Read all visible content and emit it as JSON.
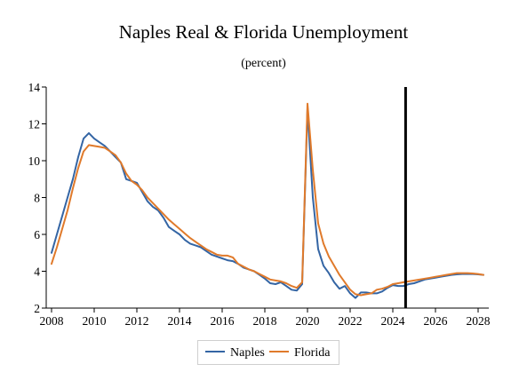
{
  "chart_data": {
    "type": "line",
    "title": "Naples Real & Florida Unemployment",
    "subtitle": "(percent)",
    "xlabel": "",
    "ylabel": "",
    "xlim": [
      2007.75,
      2028.5
    ],
    "ylim": [
      2,
      14
    ],
    "x_ticks": [
      2008,
      2010,
      2012,
      2014,
      2016,
      2018,
      2020,
      2022,
      2024,
      2026,
      2028
    ],
    "y_ticks": [
      2,
      4,
      6,
      8,
      10,
      12,
      14
    ],
    "grid": false,
    "legend_position": "bottom",
    "vertical_marker_x": 2024.6,
    "series": [
      {
        "name": "Naples",
        "color": "#3465a4",
        "x": [
          2008,
          2008.25,
          2008.5,
          2008.75,
          2009,
          2009.25,
          2009.5,
          2009.75,
          2010,
          2010.25,
          2010.5,
          2010.75,
          2011,
          2011.25,
          2011.5,
          2011.75,
          2012,
          2012.25,
          2012.5,
          2012.75,
          2013,
          2013.25,
          2013.5,
          2013.75,
          2014,
          2014.25,
          2014.5,
          2014.75,
          2015,
          2015.25,
          2015.5,
          2015.75,
          2016,
          2016.25,
          2016.5,
          2016.75,
          2017,
          2017.25,
          2017.5,
          2017.75,
          2018,
          2018.25,
          2018.5,
          2018.75,
          2019,
          2019.25,
          2019.5,
          2019.75,
          2020,
          2020.25,
          2020.5,
          2020.75,
          2021,
          2021.25,
          2021.5,
          2021.75,
          2022,
          2022.25,
          2022.5,
          2022.75,
          2023,
          2023.25,
          2023.5,
          2023.75,
          2024,
          2024.25,
          2024.5,
          2024.75,
          2025,
          2025.25,
          2025.5,
          2025.75,
          2026,
          2026.25,
          2026.5,
          2026.75,
          2027,
          2027.25,
          2027.5,
          2027.75,
          2028,
          2028.25
        ],
        "values": [
          5.0,
          6.0,
          7.0,
          8.0,
          9.0,
          10.2,
          11.2,
          11.5,
          11.2,
          11.0,
          10.8,
          10.5,
          10.2,
          9.9,
          9.0,
          8.9,
          8.8,
          8.3,
          7.8,
          7.5,
          7.3,
          6.9,
          6.4,
          6.2,
          6.0,
          5.7,
          5.5,
          5.4,
          5.3,
          5.1,
          4.9,
          4.8,
          4.7,
          4.6,
          4.55,
          4.4,
          4.2,
          4.1,
          4.0,
          3.8,
          3.6,
          3.35,
          3.3,
          3.4,
          3.2,
          3.0,
          2.95,
          3.3,
          12.8,
          8.0,
          5.2,
          4.3,
          3.9,
          3.4,
          3.05,
          3.2,
          2.8,
          2.55,
          2.85,
          2.85,
          2.8,
          2.8,
          2.9,
          3.1,
          3.25,
          3.2,
          3.2,
          3.3,
          3.35,
          3.45,
          3.55,
          3.6,
          3.65,
          3.7,
          3.75,
          3.8,
          3.83,
          3.85,
          3.85,
          3.85,
          3.83,
          3.8
        ]
      },
      {
        "name": "Florida",
        "color": "#e07a2b",
        "x": [
          2008,
          2008.25,
          2008.5,
          2008.75,
          2009,
          2009.25,
          2009.5,
          2009.75,
          2010,
          2010.25,
          2010.5,
          2010.75,
          2011,
          2011.25,
          2011.5,
          2011.75,
          2012,
          2012.25,
          2012.5,
          2012.75,
          2013,
          2013.25,
          2013.5,
          2013.75,
          2014,
          2014.25,
          2014.5,
          2014.75,
          2015,
          2015.25,
          2015.5,
          2015.75,
          2016,
          2016.25,
          2016.5,
          2016.75,
          2017,
          2017.25,
          2017.5,
          2017.75,
          2018,
          2018.25,
          2018.5,
          2018.75,
          2019,
          2019.25,
          2019.5,
          2019.75,
          2020,
          2020.25,
          2020.5,
          2020.75,
          2021,
          2021.25,
          2021.5,
          2021.75,
          2022,
          2022.25,
          2022.5,
          2022.75,
          2023,
          2023.25,
          2023.5,
          2023.75,
          2024,
          2024.25,
          2024.5,
          2024.75,
          2025,
          2025.25,
          2025.5,
          2025.75,
          2026,
          2026.25,
          2026.5,
          2026.75,
          2027,
          2027.25,
          2027.5,
          2027.75,
          2028,
          2028.25
        ],
        "values": [
          4.4,
          5.3,
          6.3,
          7.3,
          8.5,
          9.6,
          10.5,
          10.85,
          10.8,
          10.75,
          10.7,
          10.5,
          10.3,
          9.9,
          9.3,
          8.9,
          8.7,
          8.4,
          8.0,
          7.7,
          7.4,
          7.1,
          6.8,
          6.55,
          6.3,
          6.05,
          5.8,
          5.6,
          5.4,
          5.2,
          5.05,
          4.9,
          4.85,
          4.85,
          4.75,
          4.4,
          4.25,
          4.1,
          4.0,
          3.85,
          3.7,
          3.55,
          3.5,
          3.45,
          3.35,
          3.2,
          3.1,
          3.4,
          13.1,
          9.5,
          6.6,
          5.5,
          4.8,
          4.3,
          3.8,
          3.4,
          3.0,
          2.75,
          2.7,
          2.75,
          2.8,
          3.0,
          3.05,
          3.15,
          3.3,
          3.35,
          3.4,
          3.45,
          3.5,
          3.55,
          3.6,
          3.65,
          3.7,
          3.75,
          3.8,
          3.85,
          3.9,
          3.9,
          3.9,
          3.88,
          3.85,
          3.8
        ]
      }
    ]
  }
}
